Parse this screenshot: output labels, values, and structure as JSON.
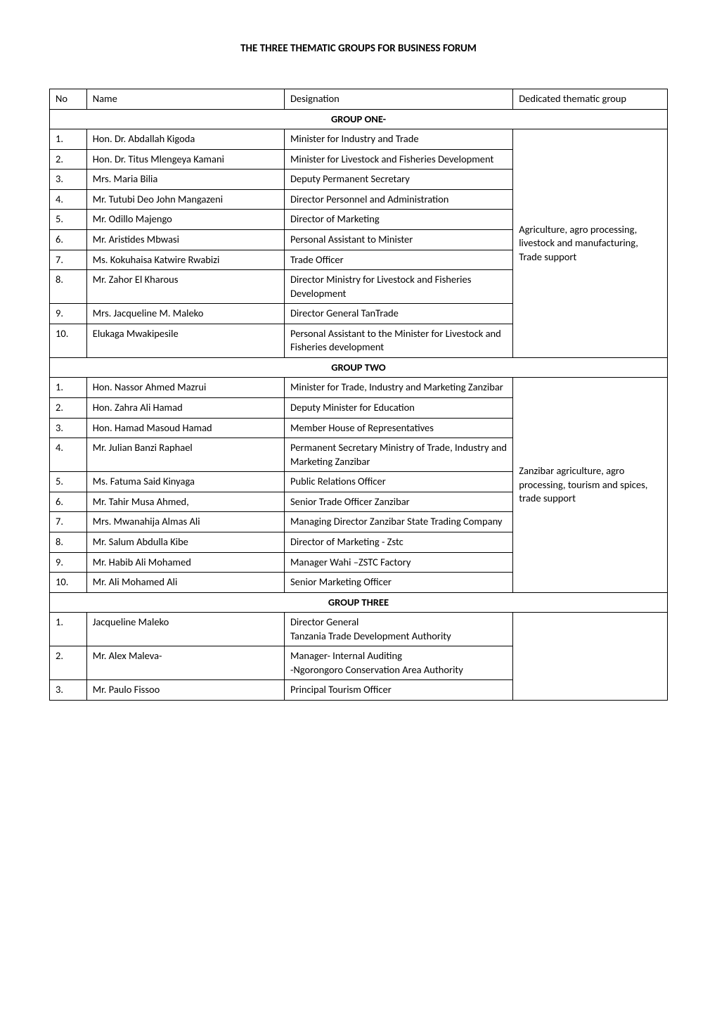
{
  "title": "THE THREE THEMATIC GROUPS FOR BUSINESS FORUM",
  "headers": {
    "no": "No",
    "name": "Name",
    "designation": "Designation",
    "group": "Dedicated thematic group"
  },
  "sections": [
    {
      "label": "GROUP ONE-",
      "dedicated": "Agriculture, agro processing, livestock and manufacturing, Trade support",
      "rows": [
        {
          "no": "1.",
          "name": "Hon. Dr. Abdallah Kigoda",
          "desig": "Minister for  Industry  and Trade"
        },
        {
          "no": "2.",
          "name": "Hon. Dr. Titus Mlengeya Kamani",
          "desig": "Minister for Livestock and Fisheries Development"
        },
        {
          "no": "3.",
          "name": "Mrs. Maria Bilia",
          "desig": "Deputy Permanent Secretary"
        },
        {
          "no": "4.",
          "name": "Mr. Tutubi Deo John Mangazeni",
          "desig": "Director Personnel and Administration"
        },
        {
          "no": "5.",
          "name": "Mr. Odillo Majengo",
          "desig": "Director of Marketing"
        },
        {
          "no": "6.",
          "name": "Mr. Aristides Mbwasi",
          "desig": "Personal Assistant to Minister"
        },
        {
          "no": "7.",
          "name": "Ms. Kokuhaisa Katwire Rwabizi",
          "desig": "Trade Officer"
        },
        {
          "no": "8.",
          "name": "Mr. Zahor El Kharous",
          "desig": "Director Ministry for Livestock and Fisheries Development"
        },
        {
          "no": "9.",
          "name": "Mrs. Jacqueline M. Maleko",
          "desig": "Director General TanTrade"
        },
        {
          "no": "10.",
          "name": "Elukaga Mwakipesile",
          "desig": "Personal Assistant to the Minister for Livestock and Fisheries development"
        }
      ]
    },
    {
      "label": "GROUP TWO",
      "dedicated": "Zanzibar agriculture, agro processing, tourism and spices, trade support",
      "rows": [
        {
          "no": "1.",
          "name": "Hon. Nassor  Ahmed  Mazrui",
          "desig": "Minister for Trade, Industry and Marketing Zanzibar"
        },
        {
          "no": "2.",
          "name": "Hon. Zahra Ali Hamad",
          "desig": "Deputy Minister for Education"
        },
        {
          "no": "3.",
          "name": "Hon. Hamad Masoud Hamad",
          "desig": "Member House of Representatives"
        },
        {
          "no": "4.",
          "name": "Mr. Julian Banzi Raphael",
          "desig": "Permanent Secretary Ministry of Trade, Industry and Marketing Zanzibar"
        },
        {
          "no": "5.",
          "name": "Ms. Fatuma Said Kinyaga",
          "desig": "Public Relations Officer"
        },
        {
          "no": "6.",
          "name": "Mr. Tahir Musa Ahmed,",
          "desig": "Senior Trade Officer Zanzibar"
        },
        {
          "no": "7.",
          "name": "Mrs. Mwanahija Almas Ali",
          "desig": "Managing Director Zanzibar State Trading Company"
        },
        {
          "no": "8.",
          "name": "Mr. Salum Abdulla Kibe",
          "desig": "Director of Marketing - Zstc"
        },
        {
          "no": "9.",
          "name": "Mr. Habib Ali Mohamed",
          "desig": "Manager Wahi –ZSTC Factory"
        },
        {
          "no": "10.",
          "name": "Mr. Ali Mohamed Ali",
          "desig": "Senior Marketing Officer"
        }
      ]
    },
    {
      "label": "GROUP THREE",
      "dedicated": "",
      "rows": [
        {
          "no": "1.",
          "name": "Jacqueline Maleko",
          "desig": "Director General\nTanzania Trade Development Authority"
        },
        {
          "no": "2.",
          "name": "Mr. Alex Maleva-",
          "desig": "Manager- Internal Auditing\n-Ngorongoro Conservation Area Authority"
        },
        {
          "no": "3.",
          "name": "Mr. Paulo Fissoo",
          "desig": "Principal Tourism Officer"
        }
      ]
    }
  ]
}
